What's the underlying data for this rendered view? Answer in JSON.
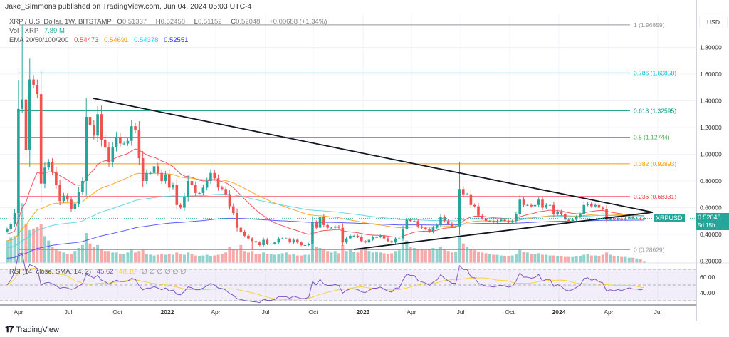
{
  "header": {
    "published": "Jake_Simmons published on TradingView.com, Jun 04, 2024 05:03 UTC-4",
    "symbol": "XRP / U.S. Dollar, 1W, BITSTAMP",
    "open_label": "O",
    "open": "0.51337",
    "high_label": "H",
    "high": "0.52458",
    "low_label": "L",
    "low": "0.51152",
    "close_label": "C",
    "close": "0.52048",
    "change": "+0.00688 (+1.34%)",
    "vol_label": "Vol · XRP",
    "vol_value": "7.89 M",
    "ema_label": "EMA 20/50/100/200",
    "ema_values": [
      "0.54473",
      "0.54691",
      "0.54378",
      "0.52551"
    ],
    "rsi_label": "RSI (14, close, SMA, 14, 2)",
    "rsi_value": "45.62",
    "rsi_sma_value": "48.19",
    "rsi_na": "∅ ∅ ∅ ∅ ∅ ∅"
  },
  "price_axis": {
    "currency": "USD",
    "ticks": [
      "1.80000",
      "1.60000",
      "1.40000",
      "1.20000",
      "1.00000",
      "0.80000",
      "0.60000",
      "0.40000",
      "0.20000"
    ],
    "rsi_ticks": [
      "60.00",
      "40.00"
    ]
  },
  "last_price": {
    "symbol": "XRPUSD",
    "price": "0.52048",
    "countdown": "5d 15h"
  },
  "footer": {
    "brand": "TradingView",
    "logo": "TV"
  },
  "colors": {
    "up": "#26a69a",
    "down": "#ef5350",
    "ema20": "#f23645",
    "ema50": "#ff9800",
    "ema100": "#4dd0e1",
    "ema200": "#3f3fff",
    "rsi": "#7e57c2",
    "rsi_sma": "#f5d43c"
  },
  "chart_data": {
    "type": "candlestick",
    "interval": "1W",
    "x_ticks": [
      "Apr",
      "Jul",
      "Oct",
      "2022",
      "Apr",
      "Jul",
      "Oct",
      "2023",
      "Apr",
      "Jul",
      "Oct",
      "2024",
      "Apr",
      "Jul"
    ],
    "ylim": [
      0.2,
      2.0
    ],
    "grid": true,
    "closes": [
      0.44,
      0.48,
      0.56,
      1.34,
      1.41,
      1.03,
      1.56,
      1.52,
      1.45,
      0.78,
      0.9,
      0.94,
      0.87,
      0.77,
      0.65,
      0.69,
      0.66,
      0.59,
      0.63,
      0.72,
      0.8,
      1.28,
      1.22,
      1.14,
      1.3,
      1.11,
      1.05,
      0.94,
      1.05,
      1.13,
      1.08,
      1.08,
      1.1,
      1.21,
      1.18,
      0.97,
      0.8,
      0.86,
      0.86,
      0.91,
      0.86,
      0.8,
      0.85,
      0.75,
      0.77,
      0.62,
      0.6,
      0.68,
      0.8,
      0.77,
      0.71,
      0.71,
      0.75,
      0.8,
      0.86,
      0.82,
      0.75,
      0.74,
      0.7,
      0.61,
      0.56,
      0.45,
      0.42,
      0.39,
      0.37,
      0.35,
      0.34,
      0.32,
      0.36,
      0.33,
      0.33,
      0.34,
      0.37,
      0.37,
      0.37,
      0.34,
      0.36,
      0.34,
      0.32,
      0.32,
      0.33,
      0.49,
      0.45,
      0.53,
      0.47,
      0.45,
      0.45,
      0.46,
      0.45,
      0.34,
      0.37,
      0.39,
      0.39,
      0.38,
      0.35,
      0.34,
      0.36,
      0.38,
      0.38,
      0.39,
      0.37,
      0.35,
      0.34,
      0.37,
      0.37,
      0.44,
      0.51,
      0.5,
      0.5,
      0.46,
      0.45,
      0.44,
      0.42,
      0.45,
      0.47,
      0.53,
      0.5,
      0.48,
      0.46,
      0.46,
      0.74,
      0.7,
      0.7,
      0.62,
      0.61,
      0.54,
      0.52,
      0.5,
      0.5,
      0.49,
      0.5,
      0.51,
      0.5,
      0.49,
      0.5,
      0.55,
      0.66,
      0.62,
      0.62,
      0.61,
      0.62,
      0.66,
      0.6,
      0.62,
      0.62,
      0.55,
      0.57,
      0.55,
      0.51,
      0.5,
      0.51,
      0.53,
      0.55,
      0.62,
      0.63,
      0.61,
      0.62,
      0.6,
      0.59,
      0.51,
      0.52,
      0.51,
      0.52,
      0.51,
      0.52,
      0.53,
      0.52,
      0.52,
      0.51337,
      0.52048
    ],
    "notable_highs": {
      "4": 1.96859,
      "120": 0.938
    },
    "notable_lows": {
      "65": 0.28629
    },
    "volume_millions": [
      150,
      170,
      180,
      420,
      400,
      260,
      220,
      230,
      240,
      260,
      180,
      150,
      110,
      90,
      80,
      70,
      60,
      60,
      80,
      100,
      120,
      200,
      130,
      110,
      120,
      90,
      80,
      80,
      70,
      70,
      60,
      60,
      70,
      90,
      70,
      80,
      90,
      60,
      55,
      50,
      55,
      60,
      55,
      60,
      55,
      70,
      60,
      55,
      70,
      60,
      50,
      45,
      50,
      55,
      45,
      50,
      55,
      60,
      70,
      110,
      90,
      95,
      120,
      80,
      70,
      80,
      60,
      60,
      70,
      60,
      60,
      55,
      60,
      65,
      70,
      55,
      60,
      50,
      50,
      55,
      55,
      130,
      110,
      100,
      90,
      80,
      70,
      80,
      65,
      120,
      80,
      90,
      75,
      70,
      95,
      105,
      80,
      70,
      75,
      70,
      65,
      60,
      65,
      80,
      85,
      130,
      150,
      110,
      100,
      95,
      90,
      85,
      90,
      100,
      95,
      110,
      90,
      80,
      70,
      75,
      180,
      130,
      110,
      95,
      85,
      75,
      70,
      65,
      60,
      55,
      55,
      50,
      45,
      45,
      50,
      60,
      90,
      75,
      70,
      60,
      60,
      65,
      55,
      55,
      50,
      50,
      45,
      45,
      40,
      40,
      40,
      45,
      45,
      55,
      60,
      50,
      50,
      45,
      55,
      70,
      55,
      45,
      45,
      40,
      40,
      35,
      35,
      30,
      25,
      8
    ],
    "fib_levels": [
      {
        "ratio": "1",
        "price": 1.96859,
        "label": "1 (1.96859)",
        "color": "#9598a1"
      },
      {
        "ratio": "0.786",
        "price": 1.60858,
        "label": "0.786 (1.60858)",
        "color": "#00bcd4"
      },
      {
        "ratio": "0.618",
        "price": 1.32595,
        "label": "0.618 (1.32595)",
        "color": "#089981"
      },
      {
        "ratio": "0.5",
        "price": 1.12744,
        "label": "0.5 (1.12744)",
        "color": "#4caf50"
      },
      {
        "ratio": "0.382",
        "price": 0.92893,
        "label": "0.382 (0.92893)",
        "color": "#ff9800"
      },
      {
        "ratio": "0.236",
        "price": 0.68331,
        "label": "0.236 (0.68331)",
        "color": "#f23645"
      },
      {
        "ratio": "0",
        "price": 0.28629,
        "label": "0 (0.28629)",
        "color": "#9598a1"
      }
    ],
    "indicators": [
      "EMA 20",
      "EMA 50",
      "EMA 100",
      "EMA 200",
      "RSI 14 with SMA 14"
    ],
    "rsi_levels": [
      70,
      50,
      30
    ],
    "trendlines": "symmetrical triangle"
  }
}
